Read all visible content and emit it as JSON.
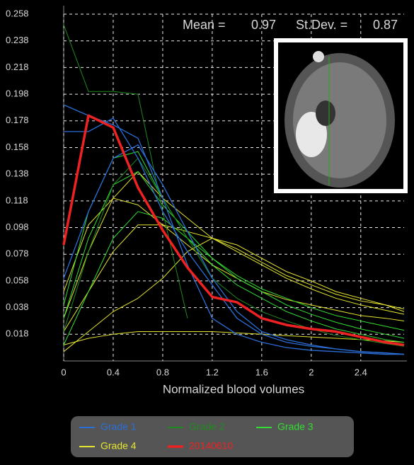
{
  "chart_data": {
    "type": "line",
    "x_label": "Normalized blood volumes",
    "stats": {
      "mean_label": "Mean =",
      "mean": 0.97,
      "sd_label": "St.Dev. =",
      "sd": 0.87
    },
    "x": [
      0,
      0.2,
      0.4,
      0.6,
      0.8,
      1.0,
      1.2,
      1.4,
      1.6,
      1.8,
      2.0,
      2.2,
      2.4,
      2.6,
      2.75
    ],
    "xlim": [
      0,
      2.75
    ],
    "xticks": [
      0,
      0.4,
      0.8,
      1.2,
      1.6,
      2,
      2.4
    ],
    "ylim": [
      -0.002,
      0.258
    ],
    "yticks": [
      0.018,
      0.038,
      0.058,
      0.078,
      0.098,
      0.118,
      0.138,
      0.158,
      0.178,
      0.198,
      0.218,
      0.238,
      0.258
    ],
    "grid": true,
    "series": [
      {
        "name": "Grade 4",
        "color": "#e6e62e",
        "width": 1,
        "values": [
          [
            0.03,
            0.08,
            0.12,
            0.14,
            0.12,
            0.105,
            0.09,
            0.08,
            0.07,
            0.06,
            0.052,
            0.045,
            0.04,
            0.036,
            0.033
          ],
          [
            0.02,
            0.05,
            0.08,
            0.1,
            0.1,
            0.095,
            0.09,
            0.082,
            0.072,
            0.062,
            0.055,
            0.048,
            0.043,
            0.04,
            0.037
          ],
          [
            0.005,
            0.02,
            0.035,
            0.045,
            0.06,
            0.08,
            0.09,
            0.085,
            0.075,
            0.065,
            0.058,
            0.05,
            0.045,
            0.04,
            0.035
          ],
          [
            0.01,
            0.015,
            0.018,
            0.02,
            0.02,
            0.02,
            0.02,
            0.019,
            0.018,
            0.017,
            0.016,
            0.015,
            0.014,
            0.013,
            0.012
          ],
          [
            0.05,
            0.1,
            0.12,
            0.115,
            0.1,
            0.085,
            0.07,
            0.06,
            0.05,
            0.044,
            0.04,
            0.036,
            0.032,
            0.03,
            0.028
          ]
        ]
      },
      {
        "name": "Grade 3",
        "color": "#33dd33",
        "width": 1,
        "values": [
          [
            0.04,
            0.11,
            0.15,
            0.155,
            0.12,
            0.09,
            0.07,
            0.055,
            0.045,
            0.035,
            0.028,
            0.022,
            0.018,
            0.014,
            0.012
          ],
          [
            0.03,
            0.09,
            0.13,
            0.14,
            0.115,
            0.095,
            0.075,
            0.06,
            0.05,
            0.04,
            0.033,
            0.027,
            0.022,
            0.018,
            0.015
          ],
          [
            0.01,
            0.05,
            0.09,
            0.11,
            0.105,
            0.09,
            0.075,
            0.062,
            0.052,
            0.045,
            0.038,
            0.032,
            0.028,
            0.024,
            0.021
          ]
        ]
      },
      {
        "name": "Grade 2",
        "color": "#1f8a1f",
        "width": 1,
        "values": [
          [
            0.25,
            0.2,
            0.2,
            0.198,
            0.11,
            0.03,
            null,
            null,
            null,
            null,
            null,
            null,
            null,
            null,
            null
          ],
          [
            0.02,
            0.08,
            0.13,
            0.15,
            0.12,
            0.09,
            0.06,
            0.045,
            0.035,
            0.028,
            0.022,
            0.017,
            0.014,
            0.011,
            0.009
          ]
        ]
      },
      {
        "name": "Grade 1",
        "color": "#2a6ed6",
        "width": 1.3,
        "values": [
          [
            0.19,
            0.182,
            0.175,
            0.165,
            0.12,
            0.07,
            0.03,
            0.018,
            0.012,
            0.008,
            0.006,
            0.005,
            0.004,
            0.003,
            0.003
          ],
          [
            0.17,
            0.17,
            0.18,
            0.15,
            0.11,
            0.08,
            0.055,
            0.03,
            0.018,
            0.012,
            0.009,
            0.007,
            0.005,
            0.004,
            0.003
          ],
          [
            0.06,
            0.11,
            0.15,
            0.16,
            0.13,
            0.095,
            0.06,
            0.035,
            0.02,
            0.014,
            0.01,
            0.007,
            0.005,
            0.004,
            0.003
          ]
        ]
      },
      {
        "name": "20140610",
        "color": "#ee2222",
        "width": 3.5,
        "values": [
          [
            0.085,
            0.182,
            0.173,
            0.128,
            0.096,
            0.068,
            0.046,
            0.042,
            0.03,
            0.025,
            0.022,
            0.02,
            0.016,
            0.012,
            0.01
          ]
        ]
      }
    ],
    "legend_order": [
      3,
      2,
      1,
      0,
      4
    ]
  }
}
